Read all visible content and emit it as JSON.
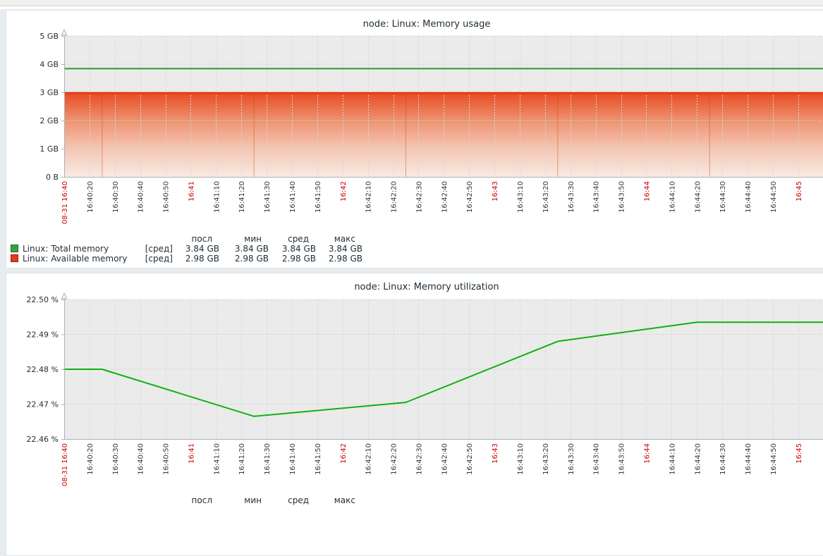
{
  "style": {
    "page_bg": "#e8ecef",
    "topbar_bg": "#f1f0ee",
    "panel_bg": "#ffffff",
    "panel_border": "#dfe4e7",
    "plot_bg": "#ebebeb",
    "grid_h": "#cbd1d6",
    "grid_v": "#d3d8dc",
    "axis": "#aab2ba",
    "text_dark": "#1f2c33",
    "tick_text": "#30373c",
    "tick_red": "#cc0000",
    "total_memory_green": "#2b9a2b",
    "utilization_green": "#10b110",
    "available_memory_red": "#e5340f",
    "area_gradient": [
      "#e74b22",
      "#ee9372",
      "#f4c6b2",
      "#f8e9e1"
    ],
    "legend_green": "#3aa23a",
    "legend_red": "#e5391a"
  },
  "time_axis": {
    "ticks": [
      {
        "label": "08-31 16:40",
        "red": true
      },
      {
        "label": "16:40:20",
        "red": false
      },
      {
        "label": "16:40:30",
        "red": false
      },
      {
        "label": "16:40:40",
        "red": false
      },
      {
        "label": "16:40:50",
        "red": false
      },
      {
        "label": "16:41",
        "red": true
      },
      {
        "label": "16:41:10",
        "red": false
      },
      {
        "label": "16:41:20",
        "red": false
      },
      {
        "label": "16:41:30",
        "red": false
      },
      {
        "label": "16:41:40",
        "red": false
      },
      {
        "label": "16:41:50",
        "red": false
      },
      {
        "label": "16:42",
        "red": true
      },
      {
        "label": "16:42:10",
        "red": false
      },
      {
        "label": "16:42:20",
        "red": false
      },
      {
        "label": "16:42:30",
        "red": false
      },
      {
        "label": "16:42:40",
        "red": false
      },
      {
        "label": "16:42:50",
        "red": false
      },
      {
        "label": "16:43",
        "red": true
      },
      {
        "label": "16:43:10",
        "red": false
      },
      {
        "label": "16:43:20",
        "red": false
      },
      {
        "label": "16:43:30",
        "red": false
      },
      {
        "label": "16:43:40",
        "red": false
      },
      {
        "label": "16:43:50",
        "red": false
      },
      {
        "label": "16:44",
        "red": true
      },
      {
        "label": "16:44:10",
        "red": false
      },
      {
        "label": "16:44:20",
        "red": false
      },
      {
        "label": "16:44:30",
        "red": false
      },
      {
        "label": "16:44:40",
        "red": false
      },
      {
        "label": "16:44:50",
        "red": false
      },
      {
        "label": "16:45",
        "red": true
      }
    ],
    "extra_gridlines": [
      "16:45:10",
      "16:45:20"
    ]
  },
  "chart_data": [
    {
      "type": "area",
      "title": "node: Linux: Memory usage",
      "ylabel": "bytes",
      "y_ticks": [
        "5 GB",
        "4 GB",
        "3 GB",
        "2 GB",
        "1 GB",
        "0 B"
      ],
      "ylim_gb": [
        0,
        5
      ],
      "grid": true,
      "legend_position": "bottom",
      "series": [
        {
          "name": "Linux: Total memory",
          "style": "line",
          "color": "#2b9a2b",
          "constant_value_gb": 3.84
        },
        {
          "name": "Linux: Available memory",
          "style": "gradient-area",
          "color": "#e5340f",
          "constant_value_gb": 2.98,
          "sample_boundaries": [
            "16:40:25",
            "16:41:25",
            "16:42:25",
            "16:43:25",
            "16:44:25"
          ]
        }
      ],
      "legend": {
        "headers": [
          "посл",
          "мин",
          "сред",
          "макс"
        ],
        "rows": [
          {
            "color": "#3aa23a",
            "label": "Linux: Total memory",
            "func": "[сред]",
            "values": [
              "3.84 GB",
              "3.84 GB",
              "3.84 GB",
              "3.84 GB"
            ]
          },
          {
            "color": "#e5391a",
            "label": "Linux: Available memory",
            "func": "[сред]",
            "values": [
              "2.98 GB",
              "2.98 GB",
              "2.98 GB",
              "2.98 GB"
            ]
          }
        ]
      }
    },
    {
      "type": "line",
      "title": "node: Linux: Memory utilization",
      "ylabel": "percent",
      "y_ticks": [
        "22.50 %",
        "22.49 %",
        "22.48 %",
        "22.47 %",
        "22.46 %"
      ],
      "ylim_pct": [
        22.46,
        22.5
      ],
      "grid": true,
      "series": [
        {
          "name": "Linux: Memory utilization",
          "color": "#10b110",
          "points": [
            {
              "time": "16:40:10",
              "value": 22.48
            },
            {
              "time": "16:40:25",
              "value": 22.48
            },
            {
              "time": "16:41:25",
              "value": 22.4665
            },
            {
              "time": "16:42:25",
              "value": 22.4705
            },
            {
              "time": "16:43:25",
              "value": 22.488
            },
            {
              "time": "16:44:20",
              "value": 22.4935
            },
            {
              "time": "16:45:10",
              "value": 22.4935
            }
          ]
        }
      ],
      "legend": {
        "headers": [
          "посл",
          "мин",
          "сред",
          "макс"
        ],
        "rows": []
      }
    }
  ]
}
